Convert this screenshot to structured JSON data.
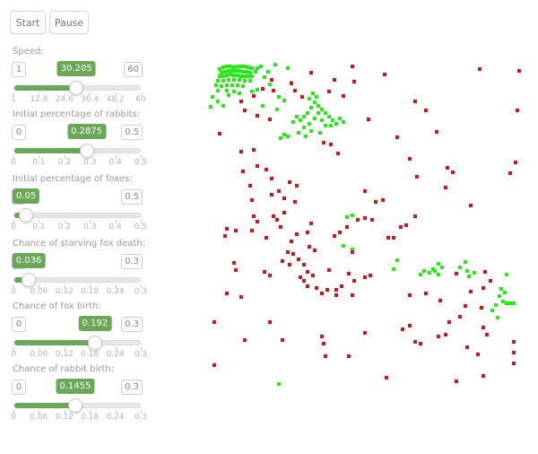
{
  "controls": {
    "start_label": "Start",
    "pause_label": "Pause"
  },
  "sliders": [
    {
      "id": "speed",
      "label": "Speed:",
      "min": 1,
      "max": 60,
      "value": 30.205,
      "min_text": "1",
      "max_text": "60",
      "value_text": "30.205",
      "tick_labels": [
        "1",
        "12.8",
        "24.6",
        "36.4",
        "48.2",
        "60"
      ]
    },
    {
      "id": "rabbits",
      "label": "Initial percentage of rabbits:",
      "min": 0,
      "max": 0.5,
      "value": 0.2875,
      "min_text": "0",
      "max_text": "0.5",
      "value_text": "0.2875",
      "tick_labels": [
        "0",
        "0.1",
        "0.2",
        "0.3",
        "0.4",
        "0.5"
      ]
    },
    {
      "id": "foxes",
      "label": "Initial percentage of foxes:",
      "min": 0,
      "max": 0.5,
      "value": 0.05,
      "min_text": "0",
      "max_text": "0.5",
      "value_text": "0.05",
      "tick_labels": [
        "0",
        "0.1",
        "0.2",
        "0.3",
        "0.4",
        "0.5"
      ]
    },
    {
      "id": "starve",
      "label": "Chance of starving fox death:",
      "min": 0,
      "max": 0.3,
      "value": 0.036,
      "min_text": "0",
      "max_text": "0.3",
      "value_text": "0.036",
      "tick_labels": [
        "0",
        "0.06",
        "0.12",
        "0.18",
        "0.24",
        "0.3"
      ]
    },
    {
      "id": "foxbirth",
      "label": "Chance of fox birth:",
      "min": 0,
      "max": 0.3,
      "value": 0.192,
      "min_text": "0",
      "max_text": "0.3",
      "value_text": "0.192",
      "tick_labels": [
        "0",
        "0.06",
        "0.12",
        "0.18",
        "0.24",
        "0.3"
      ]
    },
    {
      "id": "rabbitbirth",
      "label": "Chance of rabbit birth:",
      "min": 0,
      "max": 0.3,
      "value": 0.1455,
      "min_text": "0",
      "max_text": "0.3",
      "value_text": "0.1455",
      "tick_labels": [
        "0",
        "0.06",
        "0.12",
        "0.18",
        "0.24",
        "0.3"
      ]
    }
  ],
  "simulation": {
    "rabbit_color": "#22ee11",
    "fox_color": "#dd1111"
  }
}
